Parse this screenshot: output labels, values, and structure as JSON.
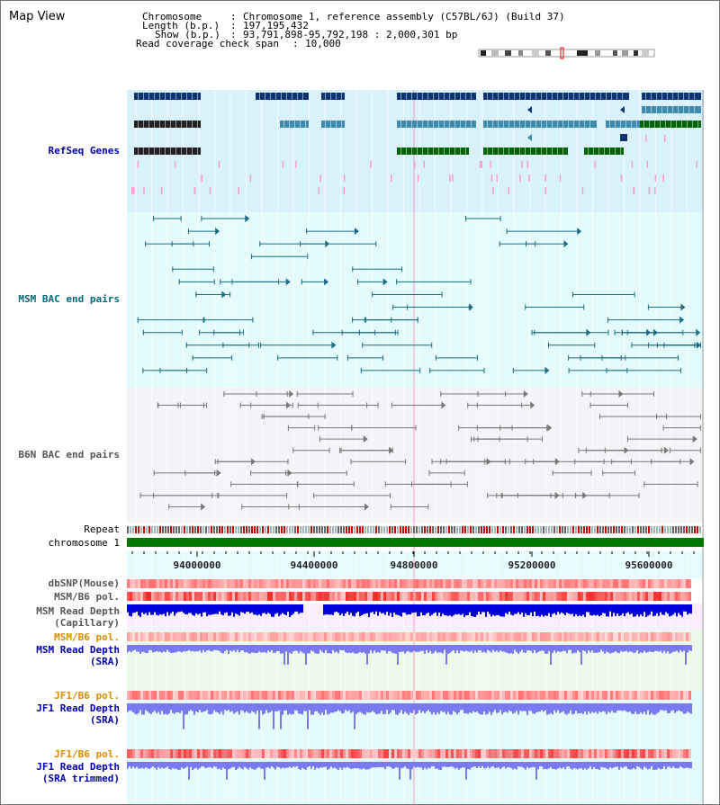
{
  "app_title": "Map View",
  "info": {
    "chromosome_label": "Chromosome",
    "chromosome_value": "Chromosome 1, reference assembly (C57BL/6J) (Build 37)",
    "length_label": "Length (b.p.)",
    "length_value": "197,195,432",
    "show_label": "Show (b.p.)",
    "show_value": "93,791,898-95,792,198 : 2,000,301 bp",
    "coverage_label": "Read coverage check span",
    "coverage_value": "10,000"
  },
  "tracks": {
    "refseq": "RefSeq Genes",
    "msm_bac": "MSM BAC end pairs",
    "b6n_bac": "B6N BAC end pairs",
    "repeat": "Repeat",
    "chromosome": "chromosome 1",
    "dbsnp": "dbSNP(Mouse)",
    "msm_pol": "MSM/B6 pol.",
    "msm_depth_cap_1": "MSM Read Depth",
    "msm_depth_cap_2": "(Capillary)",
    "msm_pol_sra": "MSM/B6 pol.",
    "msm_depth_sra_1": "MSM Read Depth",
    "msm_depth_sra_2": "(SRA)",
    "jf1_pol": "JF1/B6 pol.",
    "jf1_depth_sra_1": "JF1 Read Depth",
    "jf1_depth_sra_2": "(SRA)",
    "jf1_pol_trim": "JF1/B6 pol.",
    "jf1_depth_trim_1": "JF1 Read Depth",
    "jf1_depth_trim_2": "(SRA trimmed)"
  },
  "axis": {
    "ticks": [
      "94000000",
      "94400000",
      "94800000",
      "95200000",
      "95600000"
    ]
  },
  "colors": {
    "refseq_dark": "#0b3470",
    "refseq_mid": "#3d8bb0",
    "refseq_green": "#006400",
    "msm_bac": "#1d6b86",
    "b6n_bac": "#777777",
    "depth_blue": "#0000dd",
    "depth_light": "#7a7af0",
    "label_blue": "#0000aa",
    "label_teal": "#006b7b",
    "label_orange": "#e08a00"
  }
}
